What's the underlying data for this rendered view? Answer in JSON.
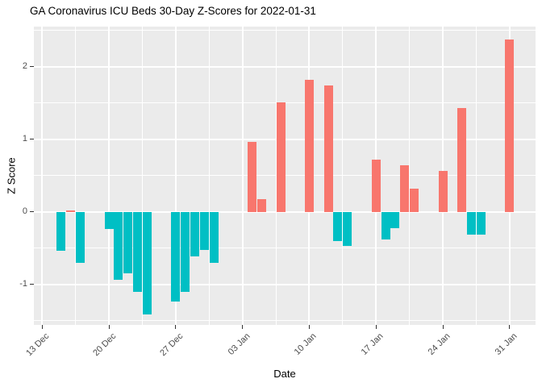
{
  "title": "GA Coronavirus ICU Beds 30-Day Z-Scores for 2022-01-31",
  "colors": {
    "positive_bar": "#F8766D",
    "negative_bar": "#00BFC4",
    "panel_background": "#EBEBEB",
    "gridline": "#FFFFFF",
    "axis_text": "#4D4D4D",
    "title_text": "#000000"
  },
  "chart_data": {
    "type": "bar",
    "title": "GA Coronavirus ICU Beds 30-Day Z-Scores for 2022-01-31",
    "xlabel": "Date",
    "ylabel": "Z Score",
    "legend": "none",
    "grid": "on",
    "x_axis": {
      "start_date": "2021-12-13",
      "tick_dates": [
        "2021-12-13",
        "2021-12-20",
        "2021-12-27",
        "2022-01-03",
        "2022-01-10",
        "2022-01-17",
        "2022-01-24",
        "2022-01-31"
      ],
      "tick_labels": [
        "13 Dec",
        "20 Dec",
        "27 Dec",
        "03 Jan",
        "10 Jan",
        "17 Jan",
        "24 Jan",
        "31 Jan"
      ]
    },
    "y_axis": {
      "ticks": [
        -1,
        0,
        1,
        2
      ],
      "tick_labels": [
        "-1",
        "0",
        "1",
        "2"
      ],
      "minor_ticks": [
        -1.5,
        -0.5,
        0.5,
        1.5,
        2.5
      ],
      "range": [
        -1.56,
        2.55
      ]
    },
    "bars": [
      {
        "date": "2021-12-15",
        "value": -0.54
      },
      {
        "date": "2021-12-16",
        "value": 0.02
      },
      {
        "date": "2021-12-17",
        "value": -0.7
      },
      {
        "date": "2021-12-20",
        "value": -0.24
      },
      {
        "date": "2021-12-21",
        "value": -0.94
      },
      {
        "date": "2021-12-22",
        "value": -0.85
      },
      {
        "date": "2021-12-23",
        "value": -1.1
      },
      {
        "date": "2021-12-24",
        "value": -1.41
      },
      {
        "date": "2021-12-27",
        "value": -1.24
      },
      {
        "date": "2021-12-28",
        "value": -1.1
      },
      {
        "date": "2021-12-29",
        "value": -0.62
      },
      {
        "date": "2021-12-30",
        "value": -0.53
      },
      {
        "date": "2021-12-31",
        "value": -0.7
      },
      {
        "date": "2022-01-04",
        "value": 0.96
      },
      {
        "date": "2022-01-05",
        "value": 0.17
      },
      {
        "date": "2022-01-07",
        "value": 1.51
      },
      {
        "date": "2022-01-10",
        "value": 1.82
      },
      {
        "date": "2022-01-12",
        "value": 1.74
      },
      {
        "date": "2022-01-13",
        "value": -0.4
      },
      {
        "date": "2022-01-14",
        "value": -0.47
      },
      {
        "date": "2022-01-17",
        "value": 0.72
      },
      {
        "date": "2022-01-18",
        "value": -0.38
      },
      {
        "date": "2022-01-19",
        "value": -0.23
      },
      {
        "date": "2022-01-20",
        "value": 0.64
      },
      {
        "date": "2022-01-21",
        "value": 0.32
      },
      {
        "date": "2022-01-24",
        "value": 0.56
      },
      {
        "date": "2022-01-26",
        "value": 1.43
      },
      {
        "date": "2022-01-27",
        "value": -0.32
      },
      {
        "date": "2022-01-28",
        "value": -0.32
      },
      {
        "date": "2022-01-31",
        "value": 2.37
      }
    ]
  }
}
